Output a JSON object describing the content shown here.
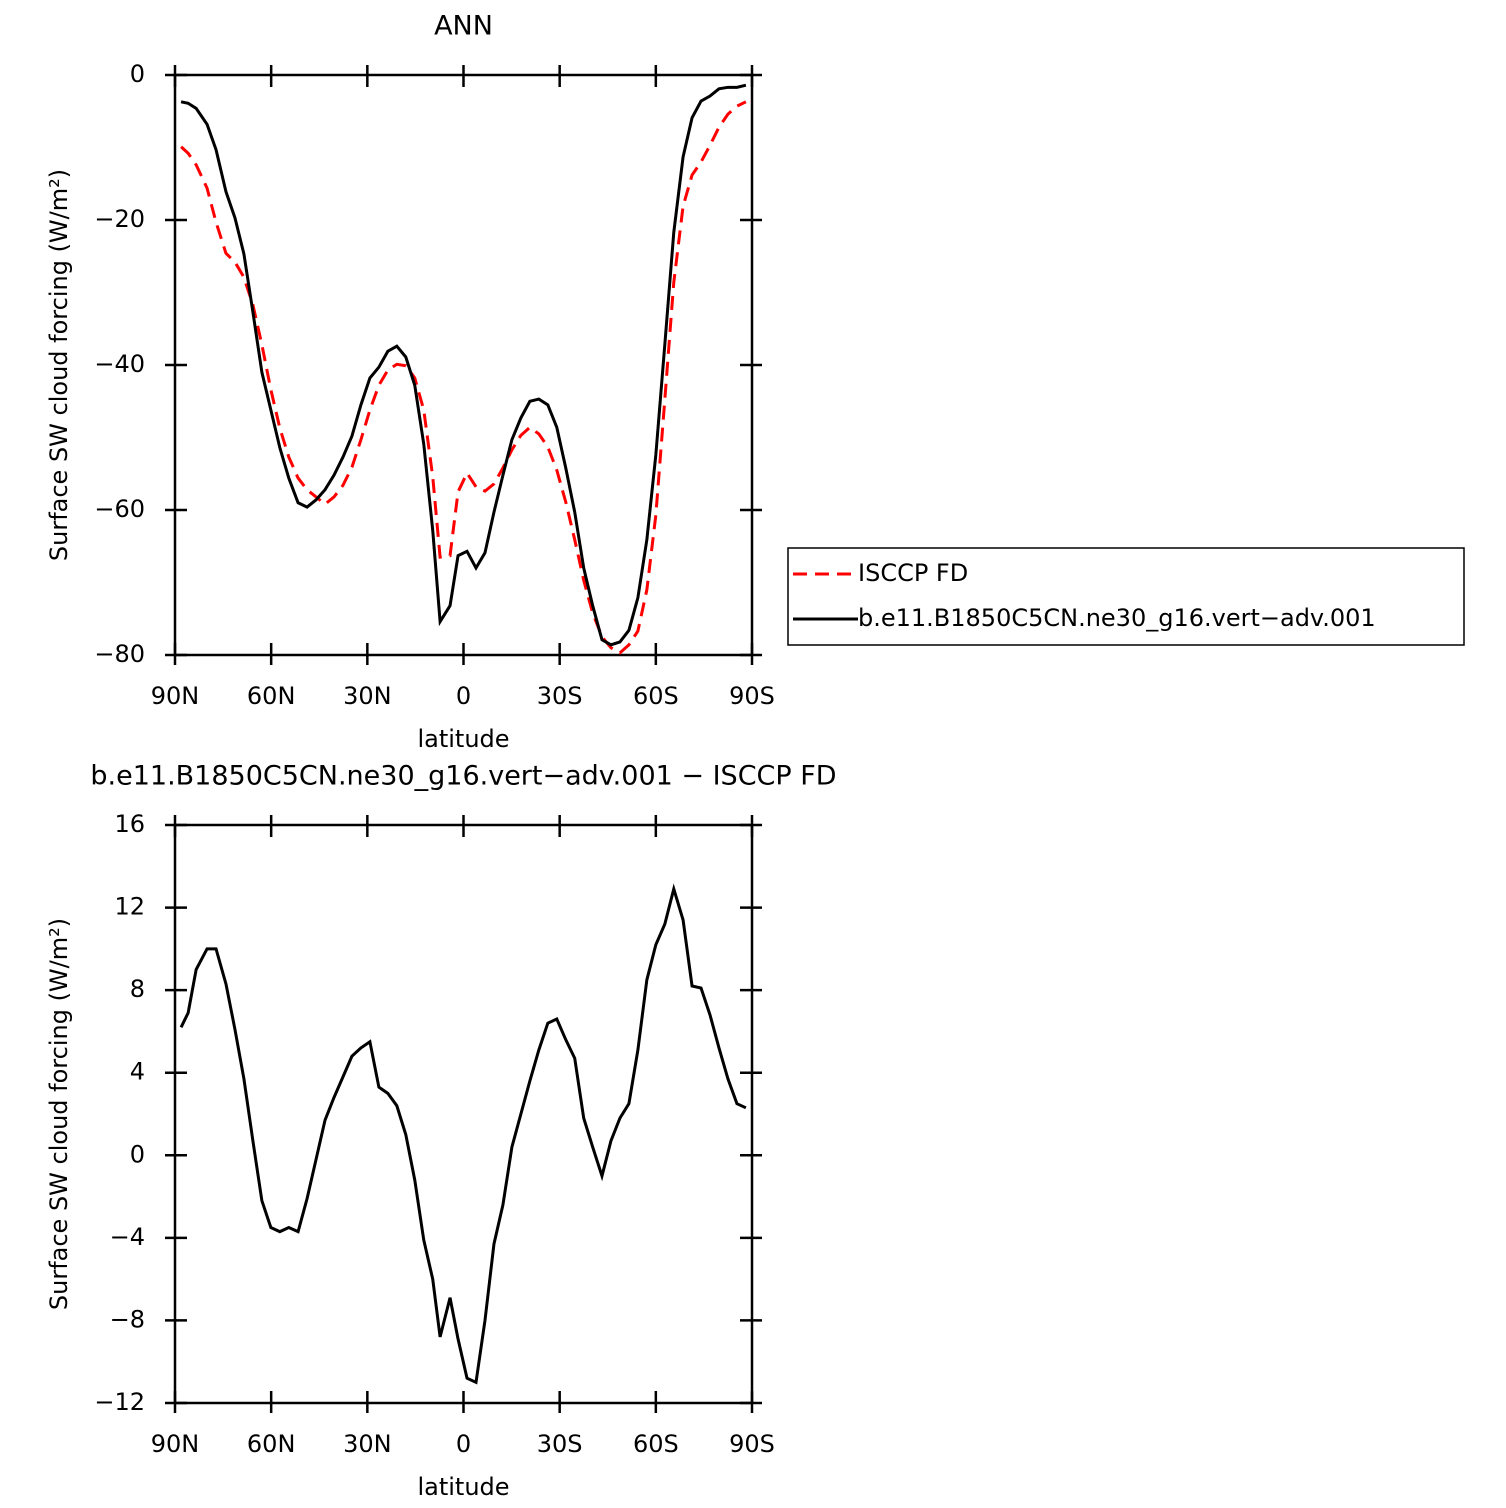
{
  "chart_data": [
    {
      "type": "line",
      "title": "ANN",
      "xlabel": "latitude",
      "ylabel": "Surface SW cloud forcing (W/m²)",
      "xlim": [
        90,
        -90
      ],
      "xticks": [
        {
          "value": 90,
          "label": "90N"
        },
        {
          "value": 60,
          "label": "60N"
        },
        {
          "value": 30,
          "label": "30N"
        },
        0,
        {
          "value": -30,
          "label": "30S"
        },
        {
          "value": -60,
          "label": "60S"
        },
        {
          "value": -90,
          "label": "90S"
        }
      ],
      "ylim": [
        -80,
        0
      ],
      "yticks": [
        {
          "value": -80,
          "label": "−80"
        },
        {
          "value": -60,
          "label": "−60"
        },
        {
          "value": -40,
          "label": "−40"
        },
        {
          "value": -20,
          "label": "−20"
        },
        0
      ],
      "legend": "right",
      "x": [
        88.1,
        85.9,
        83.4,
        80.0,
        77.2,
        74.1,
        71.3,
        68.5,
        65.7,
        62.9,
        60.1,
        57.3,
        54.5,
        51.6,
        48.8,
        46.0,
        43.2,
        40.4,
        37.6,
        34.8,
        32.0,
        29.2,
        26.4,
        23.6,
        20.8,
        18.0,
        15.2,
        12.4,
        9.6,
        7.3,
        4.2,
        1.7,
        -1.1,
        -3.9,
        -6.7,
        -9.5,
        -12.3,
        -15.1,
        -17.9,
        -20.7,
        -23.5,
        -26.3,
        -29.1,
        -31.9,
        -34.7,
        -37.5,
        -40.3,
        -43.2,
        -46.0,
        -48.8,
        -51.6,
        -54.4,
        -57.2,
        -60.0,
        -62.8,
        -65.6,
        -68.5,
        -71.3,
        -74.1,
        -76.9,
        -79.7,
        -82.5,
        -85.3,
        -88.1
      ],
      "series": [
        {
          "name": "ISCCP FD",
          "color": "#ff0000",
          "line_style": "dashed",
          "values": [
            -9.9,
            -10.8,
            -12.4,
            -15.6,
            -20.3,
            -24.6,
            -25.8,
            -27.9,
            -31.7,
            -37.2,
            -43.4,
            -48.7,
            -52.7,
            -55.6,
            -57.2,
            -58.2,
            -59.2,
            -58.2,
            -56.6,
            -54.1,
            -50.3,
            -46.2,
            -42.8,
            -40.7,
            -39.9,
            -40.1,
            -41.8,
            -46.2,
            -55.4,
            -66.5,
            -66.3,
            -57.5,
            -54.9,
            -56.8,
            -57.4,
            -56.4,
            -54.2,
            -51.7,
            -49.7,
            -48.6,
            -49.5,
            -51.3,
            -54.5,
            -58.9,
            -64.1,
            -69.7,
            -74.2,
            -77.5,
            -79.0,
            -79.7,
            -78.6,
            -76.7,
            -71.0,
            -60.7,
            -44.8,
            -28.6,
            -18.1,
            -13.8,
            -12.0,
            -9.7,
            -7.2,
            -5.4,
            -4.3,
            -3.7
          ]
        },
        {
          "name": "b.e11.B1850C5CN.ne30_g16.vert−adv.001",
          "color": "#000000",
          "line_style": "solid",
          "values": [
            -3.7,
            -3.9,
            -4.6,
            -6.8,
            -10.3,
            -16.1,
            -19.7,
            -24.7,
            -32.7,
            -41.0,
            -46.2,
            -51.4,
            -55.6,
            -59.0,
            -59.6,
            -58.6,
            -57.2,
            -55.2,
            -52.7,
            -49.8,
            -45.5,
            -41.8,
            -40.3,
            -38.1,
            -37.4,
            -38.9,
            -42.8,
            -50.9,
            -62.8,
            -75.4,
            -73.2,
            -66.3,
            -65.7,
            -68.0,
            -65.9,
            -60.3,
            -55.2,
            -50.3,
            -47.3,
            -45.0,
            -44.7,
            -45.5,
            -48.6,
            -54.2,
            -60.3,
            -68.0,
            -73.2,
            -77.9,
            -78.6,
            -78.2,
            -76.6,
            -72.1,
            -64.1,
            -52.4,
            -37.2,
            -21.7,
            -11.3,
            -5.9,
            -3.6,
            -2.9,
            -1.9,
            -1.7,
            -1.7,
            -1.4
          ]
        }
      ]
    },
    {
      "type": "line",
      "title": "b.e11.B1850C5CN.ne30_g16.vert−adv.001 − ISCCP FD",
      "xlabel": "latitude",
      "ylabel": "Surface SW cloud forcing (W/m²)",
      "xlim": [
        90,
        -90
      ],
      "xticks": [
        {
          "value": 90,
          "label": "90N"
        },
        {
          "value": 60,
          "label": "60N"
        },
        {
          "value": 30,
          "label": "30N"
        },
        0,
        {
          "value": -30,
          "label": "30S"
        },
        {
          "value": -60,
          "label": "60S"
        },
        {
          "value": -90,
          "label": "90S"
        }
      ],
      "ylim": [
        -12,
        16
      ],
      "yticks": [
        {
          "value": -12,
          "label": "−12"
        },
        {
          "value": -8,
          "label": "−8"
        },
        {
          "value": -4,
          "label": "−4"
        },
        0,
        4,
        8,
        12,
        16
      ],
      "x": [
        88.1,
        85.9,
        83.4,
        80.0,
        77.2,
        74.1,
        71.3,
        68.5,
        65.7,
        62.9,
        60.1,
        57.3,
        54.5,
        51.6,
        48.8,
        46.0,
        43.2,
        40.4,
        37.6,
        34.8,
        32.0,
        29.2,
        26.4,
        23.6,
        20.8,
        18.0,
        15.2,
        12.4,
        9.6,
        7.3,
        4.2,
        1.7,
        -1.1,
        -3.9,
        -6.7,
        -9.5,
        -12.3,
        -15.1,
        -17.9,
        -20.7,
        -23.5,
        -26.3,
        -29.1,
        -31.9,
        -34.7,
        -37.5,
        -40.3,
        -43.2,
        -46.0,
        -48.8,
        -51.6,
        -54.4,
        -57.2,
        -60.0,
        -62.8,
        -65.6,
        -68.5,
        -71.3,
        -74.1,
        -76.9,
        -79.7,
        -82.5,
        -85.3,
        -88.1
      ],
      "color": "#000000",
      "values": [
        6.2,
        6.9,
        9.0,
        10.0,
        10.0,
        8.3,
        6.1,
        3.7,
        0.7,
        -2.2,
        -3.5,
        -3.7,
        -3.5,
        -3.7,
        -2.1,
        -0.2,
        1.7,
        2.8,
        3.8,
        4.8,
        5.2,
        5.5,
        3.3,
        3.0,
        2.4,
        1.0,
        -1.2,
        -4.1,
        -6.0,
        -8.8,
        -6.9,
        -8.9,
        -10.8,
        -11.0,
        -8.0,
        -4.3,
        -2.4,
        0.4,
        2.0,
        3.6,
        5.1,
        6.4,
        6.6,
        5.6,
        4.7,
        1.8,
        0.4,
        -1.0,
        0.7,
        1.8,
        2.5,
        5.1,
        8.5,
        10.2,
        11.2,
        12.9,
        11.4,
        8.2,
        8.1,
        6.8,
        5.2,
        3.7,
        2.5,
        2.3
      ]
    }
  ]
}
